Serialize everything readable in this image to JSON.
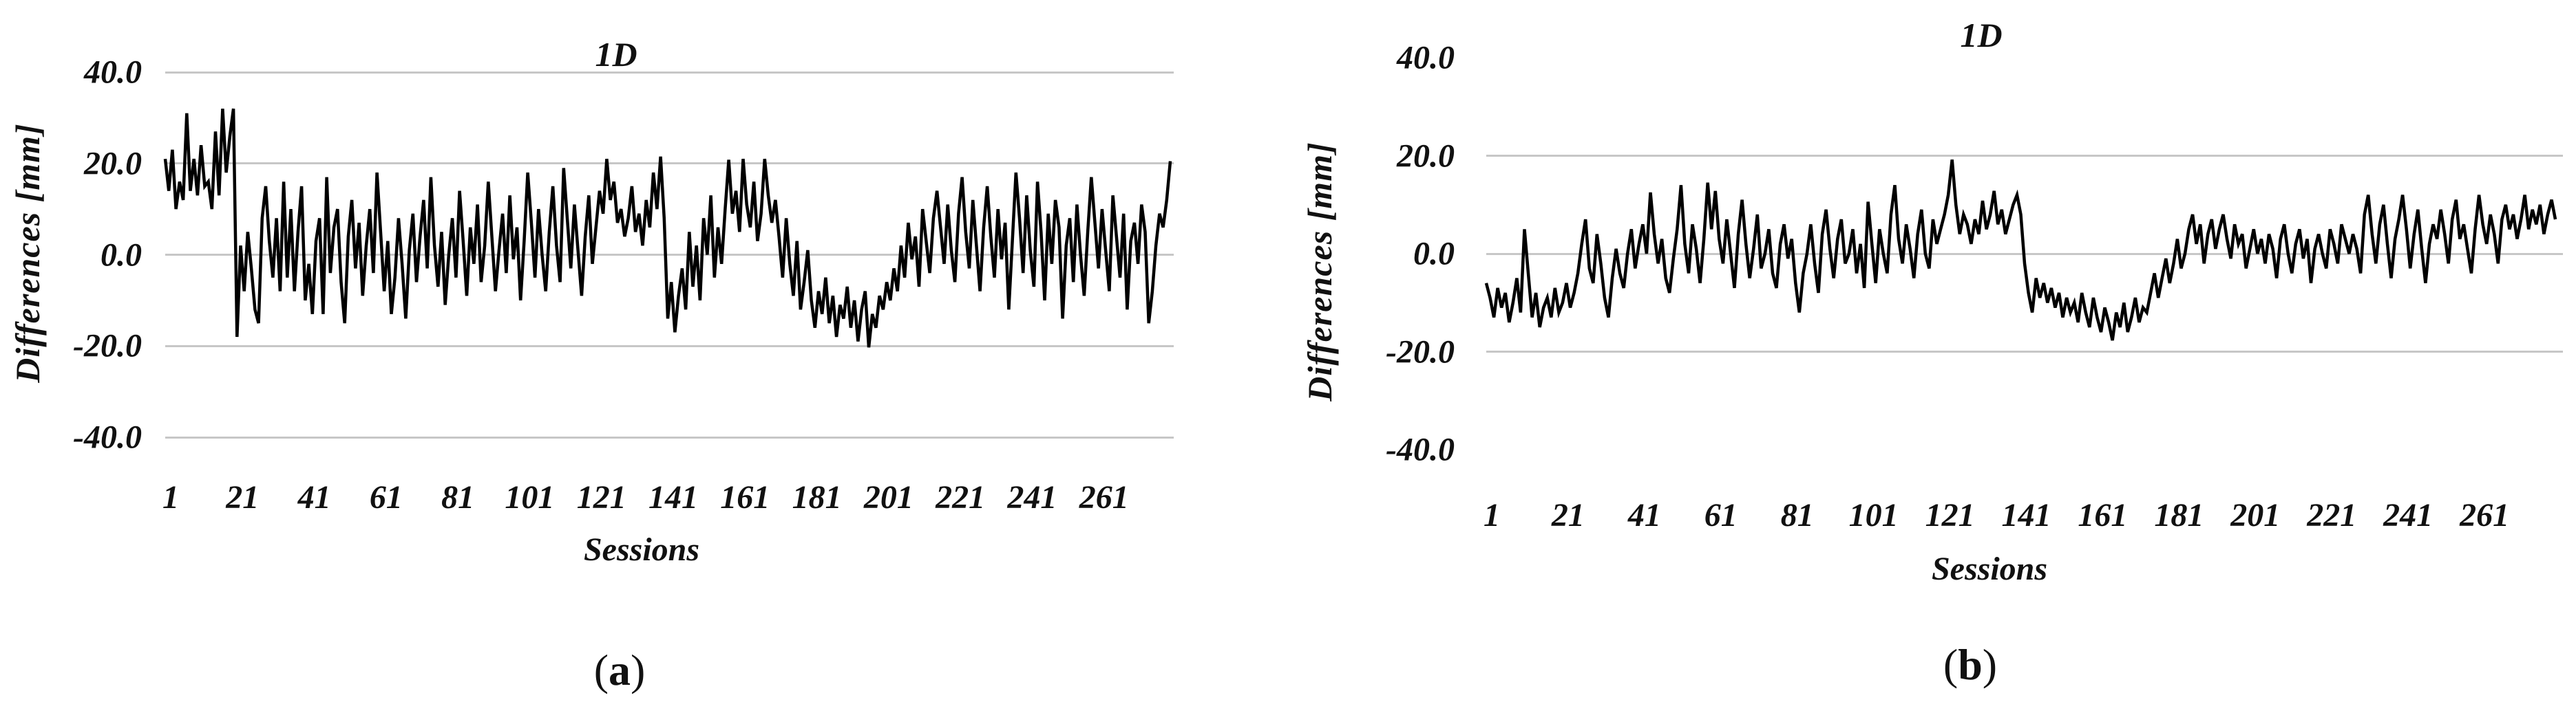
{
  "figure": {
    "panels": [
      {
        "title": "1D",
        "y_axis_label": "Differences [mm]",
        "x_axis_label": "Sessions",
        "caption_letter": "a",
        "caption_open": "(",
        "caption_close": ")"
      },
      {
        "title": "1D",
        "y_axis_label": "Differences [mm]",
        "x_axis_label": "Sessions",
        "caption_letter": "b",
        "caption_open": "(",
        "caption_close": ")"
      }
    ],
    "colors": {
      "line": "#000000",
      "gridline": "#c7c7c7",
      "background": "#ffffff",
      "text": "#111111"
    }
  },
  "chart_data": [
    {
      "type": "line",
      "title": "1D",
      "xlabel": "Sessions",
      "ylabel": "Differences [mm]",
      "ylim": [
        -40,
        40
      ],
      "grid": true,
      "gridline_values": [
        40,
        20,
        0,
        -20,
        -40
      ],
      "y_ticks": [
        "40.0",
        "20.0",
        "0.0",
        "-20.0",
        "-40.0"
      ],
      "y_tick_values": [
        40,
        20,
        0,
        -20,
        -40
      ],
      "x_tick_values": [
        1,
        21,
        41,
        61,
        81,
        101,
        121,
        141,
        161,
        181,
        201,
        221,
        241,
        261
      ],
      "x_start": 1,
      "x_step": 1,
      "legend": null,
      "values": [
        21,
        14,
        23,
        10,
        16,
        12,
        31,
        14,
        21,
        13,
        24,
        15,
        16,
        10,
        27,
        13,
        32,
        18,
        26,
        32,
        -18,
        2,
        -8,
        5,
        -3,
        -12,
        -15,
        8,
        15,
        3,
        -5,
        8,
        -8,
        16,
        -5,
        10,
        -8,
        5,
        15,
        -10,
        -2,
        -13,
        3,
        8,
        -13,
        17,
        -4,
        6,
        10,
        -6,
        -15,
        4,
        12,
        -3,
        7,
        -9,
        2,
        10,
        -4,
        18,
        5,
        -8,
        3,
        -13,
        -5,
        8,
        -2,
        -14,
        1,
        9,
        -6,
        4,
        12,
        -3,
        17,
        2,
        -7,
        5,
        -11,
        0,
        8,
        -5,
        14,
        3,
        -9,
        6,
        -2,
        11,
        -6,
        2,
        16,
        4,
        -8,
        1,
        9,
        -4,
        13,
        -1,
        6,
        -10,
        3,
        18,
        7,
        -5,
        10,
        0,
        -8,
        5,
        15,
        2,
        -6,
        19,
        8,
        -3,
        11,
        1,
        -9,
        4,
        13,
        -2,
        6,
        14,
        9,
        21,
        12,
        16,
        7,
        10,
        4,
        8,
        15,
        5,
        9,
        2,
        12,
        6,
        18,
        10,
        21.5,
        8,
        -14,
        -6,
        -17,
        -9,
        -3,
        -12,
        5,
        -7,
        2,
        -10,
        8,
        0,
        13,
        -5,
        6,
        -2,
        10,
        20.8,
        9,
        14,
        5,
        21,
        11,
        6,
        16,
        3,
        9,
        21,
        13,
        7,
        12,
        4,
        -5,
        8,
        -2,
        -9,
        3,
        -12,
        -6,
        1,
        -10,
        -16,
        -8,
        -13,
        -5,
        -15,
        -9,
        -18,
        -11,
        -14,
        -7,
        -16,
        -10,
        -19,
        -12,
        -8,
        -20.3,
        -13,
        -16,
        -9,
        -12,
        -6,
        -10,
        -3,
        -8,
        2,
        -5,
        7,
        -1,
        4,
        -7,
        10,
        3,
        -4,
        8,
        14,
        6,
        -2,
        11,
        1,
        -6,
        9,
        17,
        5,
        -3,
        12,
        2,
        -8,
        6,
        15,
        4,
        -5,
        10,
        -1,
        7,
        -12,
        3,
        18,
        8,
        -4,
        13,
        1,
        -7,
        16,
        5,
        -10,
        9,
        -2,
        12,
        6,
        -14,
        2,
        8,
        -6,
        11,
        0,
        -9,
        5,
        17,
        7,
        -3,
        10,
        1,
        -8,
        13,
        4,
        -5,
        9,
        -12,
        3,
        7,
        -2,
        11,
        5,
        -15,
        -8,
        2,
        9,
        6,
        12,
        20.5
      ]
    },
    {
      "type": "line",
      "title": "1D",
      "xlabel": "Sessions",
      "ylabel": "Differences [mm]",
      "ylim": [
        -40,
        40
      ],
      "grid": true,
      "gridline_values": [
        20,
        0,
        -20
      ],
      "y_ticks": [
        "40.0",
        "20.0",
        "0.0",
        "-20.0",
        "-40.0"
      ],
      "y_tick_values": [
        40,
        20,
        0,
        -20,
        -40
      ],
      "x_tick_values": [
        1,
        21,
        41,
        61,
        81,
        101,
        121,
        141,
        161,
        181,
        201,
        221,
        241,
        261
      ],
      "x_start": 1,
      "x_step": 1,
      "legend": null,
      "values": [
        -6,
        -9,
        -13,
        -7,
        -11,
        -8,
        -14,
        -10,
        -5,
        -12,
        5,
        -4,
        -13,
        -8,
        -15,
        -11,
        -9,
        -13,
        -7,
        -12,
        -10,
        -6,
        -11,
        -8,
        -4,
        2,
        7,
        -3,
        -6,
        4,
        -2,
        -9,
        -13,
        -5,
        1,
        -4,
        -7,
        0,
        5,
        -3,
        2,
        6,
        0,
        12.5,
        4,
        -2,
        3,
        -5,
        -8,
        -1,
        5,
        14,
        2,
        -4,
        6,
        1,
        -6,
        3,
        14.5,
        5,
        12.8,
        3,
        -2,
        7,
        0,
        -7,
        4,
        11,
        2,
        -5,
        1,
        8,
        -3,
        0,
        5,
        -4,
        -7,
        2,
        6,
        -1,
        3,
        -6,
        -12,
        -4,
        0,
        6,
        -2,
        -8,
        4,
        9,
        1,
        -5,
        3,
        7,
        -2,
        0,
        5,
        -4,
        2,
        -7,
        10.6,
        2,
        -6,
        5,
        0,
        -4,
        8,
        14,
        3,
        -2,
        6,
        1,
        -5,
        4,
        9,
        0,
        -3,
        7,
        2,
        5,
        8,
        12,
        19.2,
        10,
        4,
        8,
        6,
        2,
        7,
        4,
        10.8,
        5,
        8,
        12.8,
        6,
        9,
        4,
        7,
        10,
        12,
        8,
        -2,
        -8,
        -12,
        -5,
        -9,
        -6,
        -10,
        -7,
        -11,
        -8,
        -13,
        -9,
        -12,
        -10,
        -14,
        -8,
        -12,
        -15,
        -9,
        -13,
        -16,
        -11,
        -14,
        -17.7,
        -12,
        -15,
        -10,
        -16,
        -13,
        -9,
        -14,
        -11,
        -12,
        -8,
        -4,
        -9,
        -5,
        -1,
        -6,
        -2,
        3,
        -3,
        0,
        5,
        8,
        2,
        6,
        -2,
        4,
        7,
        1,
        5,
        8,
        3,
        -1,
        6,
        2,
        4,
        -3,
        1,
        5,
        0,
        3,
        -2,
        4,
        1,
        -5,
        3,
        6,
        0,
        -4,
        2,
        5,
        -1,
        3,
        -6,
        1,
        4,
        0,
        -3,
        5,
        2,
        -2,
        6,
        3,
        0,
        4,
        1,
        -4,
        8,
        12,
        4,
        -2,
        6,
        10,
        2,
        -5,
        3,
        7,
        12,
        5,
        -3,
        4,
        9,
        1,
        -6,
        2,
        6,
        3,
        9,
        4,
        -2,
        7,
        11,
        3,
        6,
        1,
        -4,
        5,
        12,
        6,
        2,
        8,
        4,
        -2,
        7,
        10,
        5,
        8,
        3,
        7,
        12,
        5,
        9,
        6,
        10,
        4,
        8,
        11,
        7
      ]
    }
  ]
}
